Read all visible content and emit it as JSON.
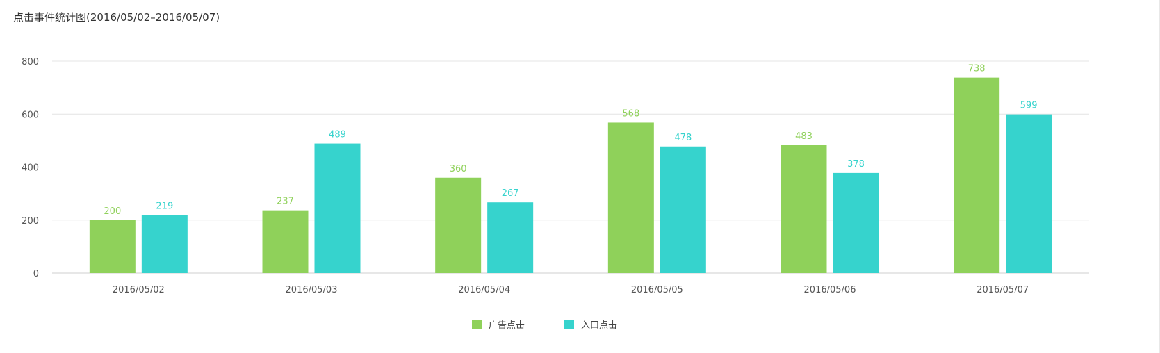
{
  "chart_data": {
    "type": "bar",
    "title": "点击事件统计图(2016/05/02–2016/05/07)",
    "categories": [
      "2016/05/02",
      "2016/05/03",
      "2016/05/04",
      "2016/05/05",
      "2016/05/06",
      "2016/05/07"
    ],
    "series": [
      {
        "name": "广告点击",
        "color": "#8fd15a",
        "values": [
          200,
          237,
          360,
          568,
          483,
          738
        ]
      },
      {
        "name": "入口点击",
        "color": "#36d3cd",
        "values": [
          219,
          489,
          267,
          478,
          378,
          599
        ]
      }
    ],
    "ylim": [
      0,
      800
    ],
    "yticks": [
      0,
      200,
      400,
      600,
      800
    ],
    "grid": true,
    "legend_position": "bottom-center"
  }
}
